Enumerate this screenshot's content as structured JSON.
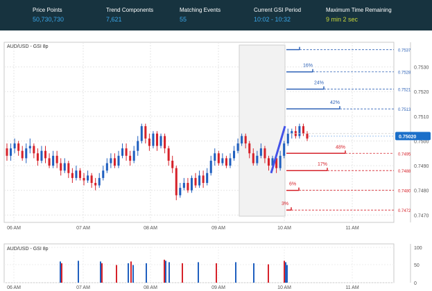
{
  "header": {
    "stats": [
      {
        "label": "Price Points",
        "value": "50,730,730",
        "color": "#3aa6e8"
      },
      {
        "label": "Trend Components",
        "value": "7,621",
        "color": "#3aa6e8"
      },
      {
        "label": "Matching Events",
        "value": "55",
        "color": "#3aa6e8"
      },
      {
        "label": "Current GSI Period",
        "value": "10:02 - 10:32",
        "color": "#3aa6e8"
      },
      {
        "label": "Maximum Time Remaining",
        "value": "9 min 2 sec",
        "color": "#c8d63a"
      }
    ]
  },
  "chart": {
    "title": "AUD/USD - GSI 8p",
    "current_price": "0.75020",
    "y_ticks": [
      "0.7530",
      "0.7520",
      "0.7510",
      "0.7500",
      "0.7490",
      "0.7480",
      "0.7470"
    ],
    "x_ticks": [
      "06 AM",
      "07 AM",
      "08 AM",
      "09 AM",
      "10 AM",
      "11 AM"
    ],
    "up_levels": [
      {
        "price": "0.7537",
        "pct": ""
      },
      {
        "price": "0.7528",
        "pct": "16%"
      },
      {
        "price": "0.7521",
        "pct": "24%"
      },
      {
        "price": "0.7513",
        "pct": "42%"
      },
      {
        "price": "0.7503",
        "pct": ""
      }
    ],
    "down_levels": [
      {
        "price": "0.7495",
        "pct": "48%"
      },
      {
        "price": "0.7488",
        "pct": "17%"
      },
      {
        "price": "0.7480",
        "pct": "6%"
      },
      {
        "price": "0.7472",
        "pct": "3%"
      }
    ]
  },
  "volume": {
    "title": "AUD/USD - GSI 8p",
    "y_ticks": [
      "100",
      "50",
      "0"
    ],
    "x_ticks": [
      "06 AM",
      "07 AM",
      "08 AM",
      "09 AM",
      "10 AM",
      "11 AM"
    ]
  },
  "chart_data": {
    "type": "candlestick",
    "title": "AUD/USD - GSI 8p",
    "ylim": [
      0.7467,
      0.754
    ],
    "candles": [
      [
        0.7497,
        0.7494,
        0.7499,
        0.7492
      ],
      [
        0.7494,
        0.7497,
        0.7499,
        0.7492
      ],
      [
        0.7497,
        0.7499,
        0.7501,
        0.7495
      ],
      [
        0.7499,
        0.7496,
        0.75,
        0.7494
      ],
      [
        0.7496,
        0.7493,
        0.7498,
        0.7492
      ],
      [
        0.7493,
        0.7497,
        0.7499,
        0.7491
      ],
      [
        0.7497,
        0.7498,
        0.7501,
        0.7495
      ],
      [
        0.7498,
        0.7495,
        0.7499,
        0.7493
      ],
      [
        0.7495,
        0.7492,
        0.7497,
        0.749
      ],
      [
        0.7492,
        0.7496,
        0.7498,
        0.7491
      ],
      [
        0.7496,
        0.7493,
        0.7498,
        0.7491
      ],
      [
        0.7493,
        0.749,
        0.7495,
        0.7489
      ],
      [
        0.749,
        0.7494,
        0.7496,
        0.7489
      ],
      [
        0.7494,
        0.7491,
        0.7496,
        0.7489
      ],
      [
        0.7491,
        0.7488,
        0.7493,
        0.7486
      ],
      [
        0.7488,
        0.7491,
        0.7493,
        0.7487
      ],
      [
        0.7491,
        0.7487,
        0.7492,
        0.7485
      ],
      [
        0.7487,
        0.7485,
        0.7489,
        0.7483
      ],
      [
        0.7485,
        0.7488,
        0.749,
        0.7484
      ],
      [
        0.7488,
        0.7485,
        0.7489,
        0.7484
      ],
      [
        0.7485,
        0.7484,
        0.7487,
        0.7482
      ],
      [
        0.7484,
        0.7486,
        0.7488,
        0.7483
      ],
      [
        0.7486,
        0.7483,
        0.7487,
        0.7481
      ],
      [
        0.7483,
        0.7482,
        0.7485,
        0.748
      ],
      [
        0.7482,
        0.7485,
        0.7487,
        0.7481
      ],
      [
        0.7485,
        0.7488,
        0.749,
        0.7484
      ],
      [
        0.7488,
        0.7491,
        0.7493,
        0.7487
      ],
      [
        0.7491,
        0.7493,
        0.7495,
        0.7489
      ],
      [
        0.7493,
        0.749,
        0.7495,
        0.7489
      ],
      [
        0.749,
        0.7494,
        0.7496,
        0.7489
      ],
      [
        0.7494,
        0.7497,
        0.7499,
        0.7493
      ],
      [
        0.7497,
        0.7494,
        0.7499,
        0.7492
      ],
      [
        0.7494,
        0.7492,
        0.7496,
        0.749
      ],
      [
        0.7492,
        0.7496,
        0.7498,
        0.7491
      ],
      [
        0.7496,
        0.75,
        0.7502,
        0.7494
      ],
      [
        0.75,
        0.7506,
        0.7507,
        0.7499
      ],
      [
        0.7506,
        0.7501,
        0.7507,
        0.7499
      ],
      [
        0.7501,
        0.7498,
        0.7503,
        0.7496
      ],
      [
        0.7498,
        0.7503,
        0.7504,
        0.7497
      ],
      [
        0.7503,
        0.7498,
        0.7504,
        0.7496
      ],
      [
        0.7498,
        0.7502,
        0.7503,
        0.7497
      ],
      [
        0.7502,
        0.7497,
        0.7503,
        0.7495
      ],
      [
        0.7497,
        0.7492,
        0.7498,
        0.749
      ],
      [
        0.7492,
        0.7489,
        0.7494,
        0.7487
      ],
      [
        0.7489,
        0.7478,
        0.749,
        0.7476
      ],
      [
        0.7478,
        0.7481,
        0.7483,
        0.7477
      ],
      [
        0.7481,
        0.7483,
        0.7485,
        0.748
      ],
      [
        0.7483,
        0.748,
        0.7485,
        0.7479
      ],
      [
        0.748,
        0.7485,
        0.7486,
        0.7479
      ],
      [
        0.7485,
        0.7482,
        0.7487,
        0.7481
      ],
      [
        0.7482,
        0.7486,
        0.7488,
        0.7481
      ],
      [
        0.7486,
        0.7483,
        0.7488,
        0.7481
      ],
      [
        0.7483,
        0.7487,
        0.7489,
        0.7482
      ],
      [
        0.7487,
        0.7492,
        0.7494,
        0.7486
      ],
      [
        0.7492,
        0.7495,
        0.7497,
        0.749
      ],
      [
        0.7495,
        0.7491,
        0.7496,
        0.749
      ],
      [
        0.7491,
        0.7493,
        0.7495,
        0.749
      ],
      [
        0.7493,
        0.749,
        0.7494,
        0.7489
      ],
      [
        0.749,
        0.7493,
        0.7495,
        0.7489
      ],
      [
        0.7493,
        0.7496,
        0.7498,
        0.7492
      ],
      [
        0.7496,
        0.7499,
        0.7501,
        0.7495
      ],
      [
        0.7499,
        0.7502,
        0.7503,
        0.7498
      ],
      [
        0.7502,
        0.7499,
        0.7503,
        0.7497
      ],
      [
        0.7499,
        0.7495,
        0.75,
        0.7493
      ],
      [
        0.7495,
        0.7491,
        0.7497,
        0.749
      ],
      [
        0.7491,
        0.7494,
        0.7496,
        0.749
      ],
      [
        0.7494,
        0.7497,
        0.7499,
        0.7493
      ],
      [
        0.7497,
        0.7493,
        0.7498,
        0.7491
      ],
      [
        0.7493,
        0.749,
        0.7494,
        0.7488
      ],
      [
        0.749,
        0.7493,
        0.7494,
        0.7488
      ],
      [
        0.7493,
        0.7489,
        0.7494,
        0.7487
      ],
      [
        0.7489,
        0.7494,
        0.7496,
        0.7488
      ],
      [
        0.7494,
        0.7499,
        0.75,
        0.7493
      ],
      [
        0.7499,
        0.7503,
        0.7505,
        0.7498
      ],
      [
        0.7503,
        0.7504,
        0.7505,
        0.7501
      ],
      [
        0.7504,
        0.7502,
        0.7506,
        0.7501
      ],
      [
        0.7502,
        0.7506,
        0.7507,
        0.7501
      ],
      [
        0.7506,
        0.7503,
        0.7507,
        0.7502
      ],
      [
        0.7503,
        0.7501,
        0.7504,
        0.75
      ]
    ],
    "volume_ylim": [
      0,
      100
    ]
  }
}
